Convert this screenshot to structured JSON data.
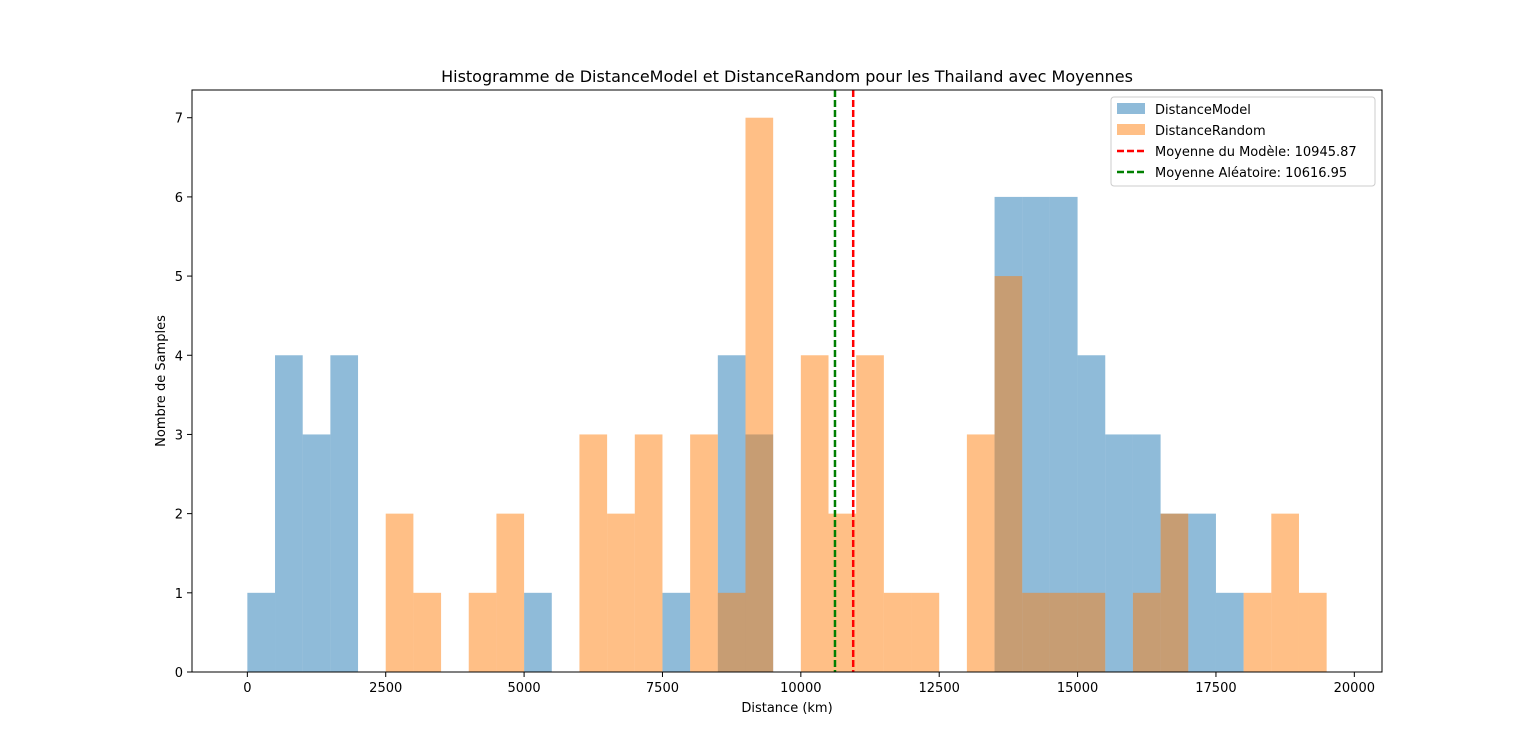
{
  "chart_data": {
    "type": "bar",
    "title": "Histogramme de DistanceModel et DistanceRandom pour les Thailand avec Moyennes",
    "xlabel": "Distance (km)",
    "ylabel": "Nombre de Samples",
    "xlim": [
      -1000,
      20500
    ],
    "ylim": [
      0,
      7.35
    ],
    "xticks": [
      0,
      2500,
      5000,
      7500,
      10000,
      12500,
      15000,
      17500,
      20000
    ],
    "yticks": [
      0,
      1,
      2,
      3,
      4,
      5,
      6,
      7
    ],
    "bin_width": 500,
    "grid": false,
    "legend_position": "top-right",
    "series": [
      {
        "name": "DistanceModel",
        "color": "#1f77b4",
        "opacity": 0.5,
        "bins": [
          {
            "x": 0,
            "count": 1
          },
          {
            "x": 500,
            "count": 4
          },
          {
            "x": 1000,
            "count": 3
          },
          {
            "x": 1500,
            "count": 4
          },
          {
            "x": 5000,
            "count": 1
          },
          {
            "x": 7500,
            "count": 1
          },
          {
            "x": 8500,
            "count": 4
          },
          {
            "x": 9000,
            "count": 3
          },
          {
            "x": 13500,
            "count": 6
          },
          {
            "x": 14000,
            "count": 6
          },
          {
            "x": 14500,
            "count": 6
          },
          {
            "x": 15000,
            "count": 4
          },
          {
            "x": 15500,
            "count": 3
          },
          {
            "x": 16000,
            "count": 3
          },
          {
            "x": 16500,
            "count": 2
          },
          {
            "x": 17000,
            "count": 2
          },
          {
            "x": 17500,
            "count": 1
          }
        ]
      },
      {
        "name": "DistanceRandom",
        "color": "#ff7f0e",
        "opacity": 0.5,
        "bins": [
          {
            "x": 2500,
            "count": 2
          },
          {
            "x": 3000,
            "count": 1
          },
          {
            "x": 4000,
            "count": 1
          },
          {
            "x": 4500,
            "count": 2
          },
          {
            "x": 6000,
            "count": 3
          },
          {
            "x": 6500,
            "count": 2
          },
          {
            "x": 7000,
            "count": 3
          },
          {
            "x": 8000,
            "count": 3
          },
          {
            "x": 8500,
            "count": 1
          },
          {
            "x": 9000,
            "count": 7
          },
          {
            "x": 10000,
            "count": 4
          },
          {
            "x": 10500,
            "count": 2
          },
          {
            "x": 11000,
            "count": 4
          },
          {
            "x": 11500,
            "count": 1
          },
          {
            "x": 12000,
            "count": 1
          },
          {
            "x": 13000,
            "count": 3
          },
          {
            "x": 13500,
            "count": 5
          },
          {
            "x": 14000,
            "count": 1
          },
          {
            "x": 14500,
            "count": 1
          },
          {
            "x": 15000,
            "count": 1
          },
          {
            "x": 16000,
            "count": 1
          },
          {
            "x": 16500,
            "count": 2
          },
          {
            "x": 18000,
            "count": 1
          },
          {
            "x": 18500,
            "count": 2
          },
          {
            "x": 19000,
            "count": 1
          }
        ]
      }
    ],
    "mean_lines": [
      {
        "name": "Moyenne du Modèle: 10945.87",
        "x": 10945.87,
        "color": "#ff0000",
        "dash": "dashed"
      },
      {
        "name": "Moyenne Aléatoire: 10616.95",
        "x": 10616.95,
        "color": "#008000",
        "dash": "dashed"
      }
    ]
  }
}
